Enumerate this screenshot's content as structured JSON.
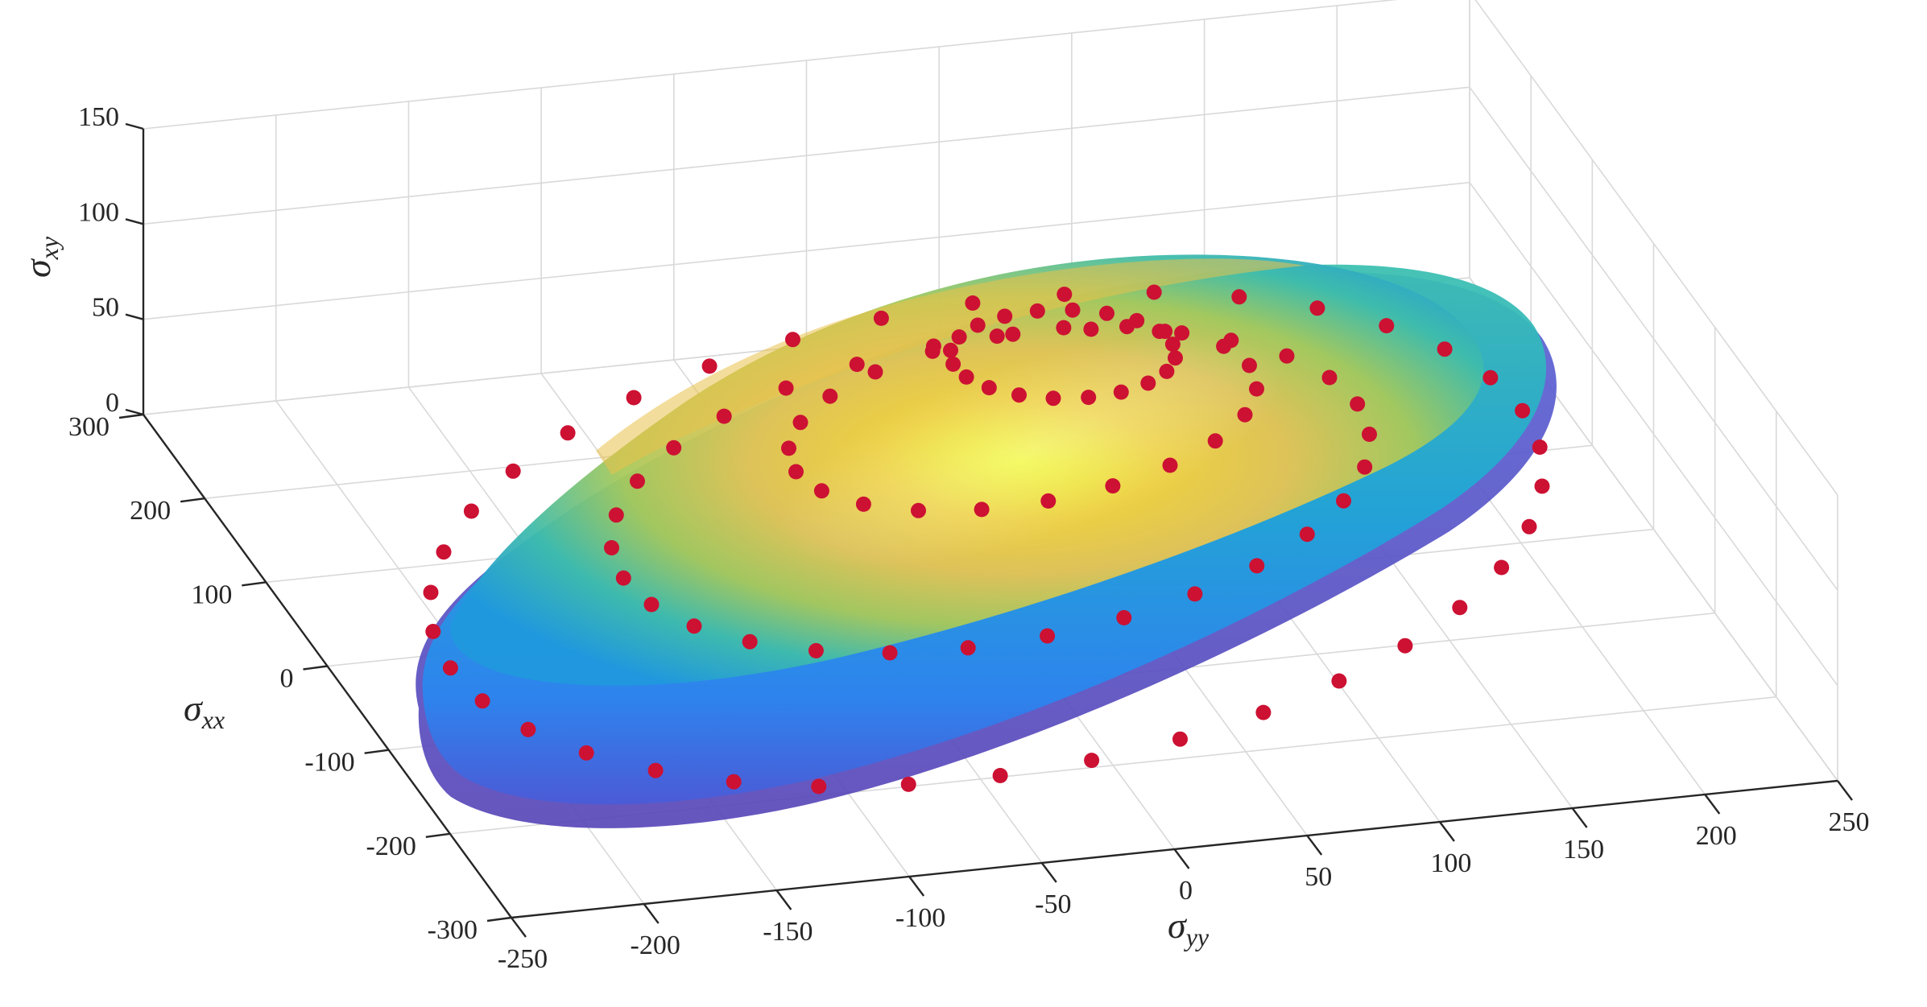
{
  "chart_data": {
    "type": "scatter",
    "subtype": "3d-surface-with-points",
    "title": "",
    "axes": {
      "x": {
        "label": "σ",
        "label_sub": "yy",
        "range": [
          -250,
          250
        ],
        "ticks": [
          -250,
          -200,
          -150,
          -100,
          -50,
          0,
          50,
          100,
          150,
          200,
          250
        ]
      },
      "y": {
        "label": "σ",
        "label_sub": "xx",
        "range": [
          -300,
          300
        ],
        "ticks": [
          -300,
          -200,
          -100,
          0,
          100,
          200,
          300
        ]
      },
      "z": {
        "label": "σ",
        "label_sub": "xy",
        "range": [
          0,
          150
        ],
        "ticks": [
          0,
          50,
          100,
          150
        ]
      }
    },
    "grid": true,
    "surface": {
      "colormap": "parula",
      "opacity": 0.85,
      "colors": [
        "#3e26a8",
        "#2e7efc",
        "#18bcc2",
        "#76c66b",
        "#f5c434",
        "#f9fb15"
      ]
    },
    "points": {
      "color": "#cc1133",
      "count": 110
    }
  }
}
